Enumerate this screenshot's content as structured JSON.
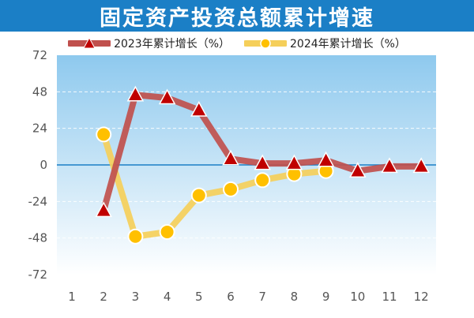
{
  "title": "固定资产投资总额累计增速",
  "chart_data": {
    "type": "line",
    "title": "固定资产投资总额累计增速",
    "xlabel": "",
    "ylabel": "",
    "categories": [
      "1",
      "2",
      "3",
      "4",
      "5",
      "6",
      "7",
      "8",
      "9",
      "10",
      "11",
      "12"
    ],
    "ylim": [
      -72,
      72
    ],
    "yticks": [
      72,
      48,
      24,
      0,
      -24,
      -48,
      -72
    ],
    "grid": true,
    "legend_position": "top",
    "series": [
      {
        "name": "2023年累计增长（%）",
        "color": "#c0504d",
        "marker": "triangle",
        "marker_color": "#c00000",
        "values": [
          null,
          -30,
          46,
          44,
          36,
          4,
          1,
          1,
          3,
          -4,
          -1,
          -1
        ]
      },
      {
        "name": "2024年累计增长（%）",
        "color": "#f5cf5a",
        "marker": "circle",
        "marker_color": "#ffc000",
        "values": [
          null,
          20,
          -47,
          -44,
          -20,
          -16,
          -10,
          -6,
          -4,
          null,
          null,
          null
        ]
      }
    ]
  },
  "colors": {
    "title_bar": "#1b7fc6",
    "plot_top": "#8ec9ee",
    "plot_bottom": "#ffffff",
    "zero_line": "#1b7fc6"
  }
}
